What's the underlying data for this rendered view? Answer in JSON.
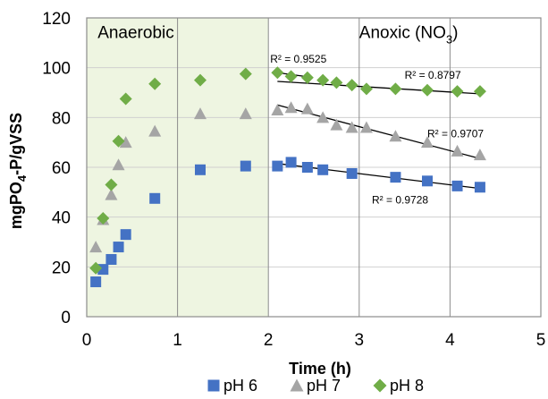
{
  "chart_data": {
    "type": "scatter",
    "xlabel": "Time (h)",
    "ylabel_main": "mgPO",
    "ylabel_sub": "4",
    "ylabel_rest": "-P/gVSS",
    "xlim": [
      0,
      5
    ],
    "ylim": [
      0,
      120
    ],
    "xticks": [
      0,
      1,
      2,
      3,
      4,
      5
    ],
    "yticks": [
      0,
      20,
      40,
      60,
      80,
      100,
      120
    ],
    "grid": true,
    "legend_position": "bottom",
    "regions": [
      {
        "label": "Anaerobic",
        "x_from": 0,
        "x_to": 2,
        "fill": "#eef5e1"
      },
      {
        "label_main": "Anoxic  (NO",
        "label_sub": "3",
        "label_end": ")",
        "x_from": 2,
        "x_to": 5
      }
    ],
    "series": [
      {
        "name": "pH 6",
        "marker": "square",
        "color": "#4472c4",
        "points": [
          [
            0.1,
            14
          ],
          [
            0.18,
            19
          ],
          [
            0.27,
            23
          ],
          [
            0.35,
            28
          ],
          [
            0.43,
            33
          ],
          [
            0.75,
            47.5
          ],
          [
            1.25,
            59
          ],
          [
            1.75,
            60.5
          ],
          [
            2.1,
            60.5
          ],
          [
            2.25,
            62
          ],
          [
            2.43,
            60
          ],
          [
            2.6,
            59
          ],
          [
            2.92,
            57.5
          ],
          [
            3.4,
            56
          ],
          [
            3.75,
            54.5
          ],
          [
            4.08,
            52.5
          ],
          [
            4.33,
            52
          ]
        ],
        "trend": {
          "x": [
            2.1,
            4.33
          ],
          "y": [
            61.5,
            51.5
          ]
        },
        "r2_label": "R² = 0.9728"
      },
      {
        "name": "pH 7",
        "marker": "triangle",
        "color": "#a5a5a5",
        "points": [
          [
            0.1,
            28
          ],
          [
            0.18,
            39
          ],
          [
            0.27,
            49
          ],
          [
            0.35,
            61
          ],
          [
            0.43,
            70
          ],
          [
            0.75,
            74.5
          ],
          [
            1.25,
            81.5
          ],
          [
            1.75,
            81.5
          ],
          [
            2.1,
            83
          ],
          [
            2.25,
            84
          ],
          [
            2.43,
            83.5
          ],
          [
            2.6,
            80
          ],
          [
            2.75,
            77
          ],
          [
            2.92,
            76
          ],
          [
            3.08,
            76
          ],
          [
            3.4,
            72.5
          ],
          [
            3.75,
            70
          ],
          [
            4.08,
            66.5
          ],
          [
            4.33,
            65
          ]
        ],
        "trend": {
          "x": [
            2.1,
            4.33
          ],
          "y": [
            85,
            63.5
          ]
        },
        "r2_label": "R² = 0.9707"
      },
      {
        "name": "pH 8",
        "marker": "diamond",
        "color": "#70ad47",
        "points": [
          [
            0.1,
            19.5
          ],
          [
            0.18,
            39.5
          ],
          [
            0.27,
            53
          ],
          [
            0.35,
            70.5
          ],
          [
            0.43,
            87.5
          ],
          [
            0.75,
            93.5
          ],
          [
            1.25,
            95
          ],
          [
            1.75,
            97.5
          ],
          [
            2.1,
            98
          ],
          [
            2.25,
            96.5
          ],
          [
            2.43,
            96
          ],
          [
            2.6,
            95
          ],
          [
            2.75,
            94
          ],
          [
            2.92,
            93
          ],
          [
            3.08,
            91.5
          ],
          [
            3.4,
            91.5
          ],
          [
            3.75,
            91
          ],
          [
            4.08,
            90.5
          ],
          [
            4.33,
            90.5
          ]
        ],
        "trend_pre": {
          "x": [
            2.1,
            2.4
          ],
          "y": [
            98,
            96.5
          ]
        },
        "trend": {
          "x": [
            2.1,
            4.33
          ],
          "y": [
            94.5,
            89.5
          ]
        },
        "r2_label": "R² = 0.8797",
        "r2_label_extra": "R² = 0.9525"
      }
    ]
  }
}
